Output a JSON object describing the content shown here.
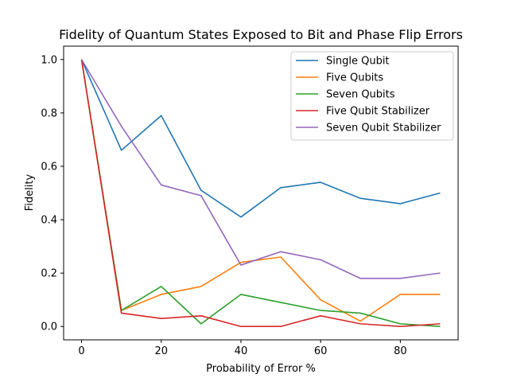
{
  "chart_data": {
    "type": "line",
    "title": "Fidelity of Quantum States Exposed to Bit and Phase Flip Errors",
    "xlabel": "Probability of Error %",
    "ylabel": "Fidelity",
    "xlim": [
      -4.5,
      94.5
    ],
    "ylim": [
      -0.05,
      1.05
    ],
    "xticks": [
      0,
      20,
      40,
      60,
      80
    ],
    "yticks": [
      0.0,
      0.2,
      0.4,
      0.6,
      0.8,
      1.0
    ],
    "xtick_labels": [
      "0",
      "20",
      "40",
      "60",
      "80"
    ],
    "ytick_labels": [
      "0.0",
      "0.2",
      "0.4",
      "0.6",
      "0.8",
      "1.0"
    ],
    "grid": false,
    "legend_position": "top-right",
    "x": [
      0,
      10,
      20,
      30,
      40,
      50,
      60,
      70,
      80,
      90
    ],
    "series": [
      {
        "name": "Single Qubit",
        "color": "#1f77b4",
        "values": [
          1.0,
          0.66,
          0.79,
          0.51,
          0.41,
          0.52,
          0.54,
          0.48,
          0.46,
          0.5
        ]
      },
      {
        "name": "Five Qubits",
        "color": "#ff7f0e",
        "values": [
          1.0,
          0.06,
          0.12,
          0.15,
          0.24,
          0.26,
          0.1,
          0.02,
          0.12,
          0.12
        ]
      },
      {
        "name": "Seven Qubits",
        "color": "#2ca02c",
        "values": [
          1.0,
          0.06,
          0.15,
          0.01,
          0.12,
          0.09,
          0.06,
          0.05,
          0.01,
          0.0
        ]
      },
      {
        "name": "Five Qubit Stabilizer",
        "color": "#d62728",
        "values": [
          1.0,
          0.05,
          0.03,
          0.04,
          0.0,
          0.0,
          0.04,
          0.01,
          0.0,
          0.01
        ]
      },
      {
        "name": "Seven Qubit Stabilizer",
        "color": "#9467bd",
        "values": [
          1.0,
          0.75,
          0.53,
          0.49,
          0.23,
          0.28,
          0.25,
          0.18,
          0.18,
          0.2
        ]
      }
    ]
  }
}
